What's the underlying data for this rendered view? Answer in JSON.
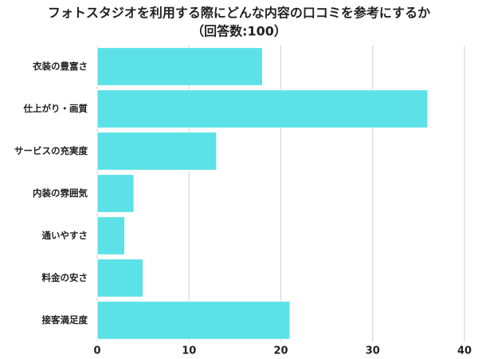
{
  "chart_data": {
    "type": "barh",
    "title": "フォトスタジオを利用する際にどんな内容の口コミを参考にするか",
    "subtitle": "（回答数:100）",
    "categories": [
      "衣装の豊富さ",
      "仕上がり・画質",
      "サービスの充実度",
      "内装の雰囲気",
      "通いやすさ",
      "料金の安さ",
      "接客満足度"
    ],
    "values": [
      18,
      36,
      13,
      4,
      3,
      5,
      21
    ],
    "color": "#5ce1e6",
    "xlim": [
      0,
      40
    ],
    "xticks": [
      0,
      10,
      20,
      30,
      40
    ],
    "grid": true
  }
}
